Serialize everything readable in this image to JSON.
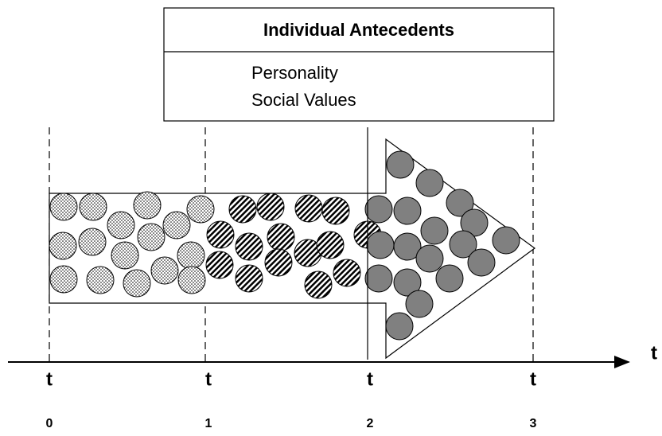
{
  "header": {
    "title": "Individual Antecedents",
    "items": [
      "Personality",
      "Social Values"
    ]
  },
  "axis": {
    "label": "t",
    "ticks": [
      {
        "label": "t",
        "subscript": "0"
      },
      {
        "label": "t",
        "subscript": "1"
      },
      {
        "label": "t",
        "subscript": "2"
      },
      {
        "label": "t",
        "subscript": "3"
      }
    ]
  }
}
